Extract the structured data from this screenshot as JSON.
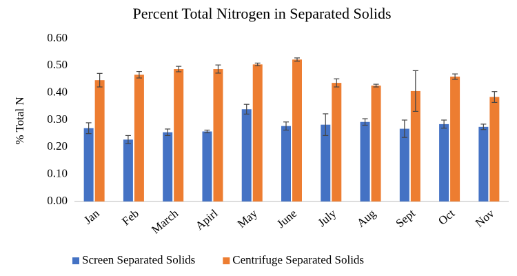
{
  "chart_data": {
    "type": "bar",
    "title": "Percent Total Nitrogen in Separated Solids",
    "y_label": "% Total N",
    "categories": [
      "Jan",
      "Feb",
      "March",
      "Apirl",
      "May",
      "June",
      "July",
      "Aug",
      "Sept",
      "Oct",
      "Nov"
    ],
    "series": [
      {
        "name": "Screen Separated Solids",
        "color": "#4472c4",
        "values": [
          0.27,
          0.228,
          0.255,
          0.258,
          0.34,
          0.278,
          0.283,
          0.293,
          0.268,
          0.285,
          0.275
        ],
        "errors": [
          0.02,
          0.015,
          0.012,
          0.005,
          0.018,
          0.015,
          0.04,
          0.012,
          0.032,
          0.015,
          0.01
        ]
      },
      {
        "name": "Centrifuge Separated Solids",
        "color": "#ed7d31",
        "values": [
          0.447,
          0.467,
          0.488,
          0.488,
          0.505,
          0.523,
          0.437,
          0.427,
          0.407,
          0.46,
          0.385
        ],
        "errors": [
          0.025,
          0.012,
          0.01,
          0.015,
          0.005,
          0.006,
          0.015,
          0.005,
          0.075,
          0.01,
          0.02
        ]
      }
    ],
    "ylim": [
      0,
      0.6
    ],
    "yticks": [
      {
        "value": 0,
        "label": "0.00"
      },
      {
        "value": 0.1,
        "label": "0.10"
      },
      {
        "value": 0.2,
        "label": "0.20"
      },
      {
        "value": 0.3,
        "label": "0.30"
      },
      {
        "value": 0.4,
        "label": "0.40"
      },
      {
        "value": 0.5,
        "label": "0.50"
      },
      {
        "value": 0.6,
        "label": "0.60"
      }
    ],
    "grid": false,
    "legend": "bottom"
  }
}
